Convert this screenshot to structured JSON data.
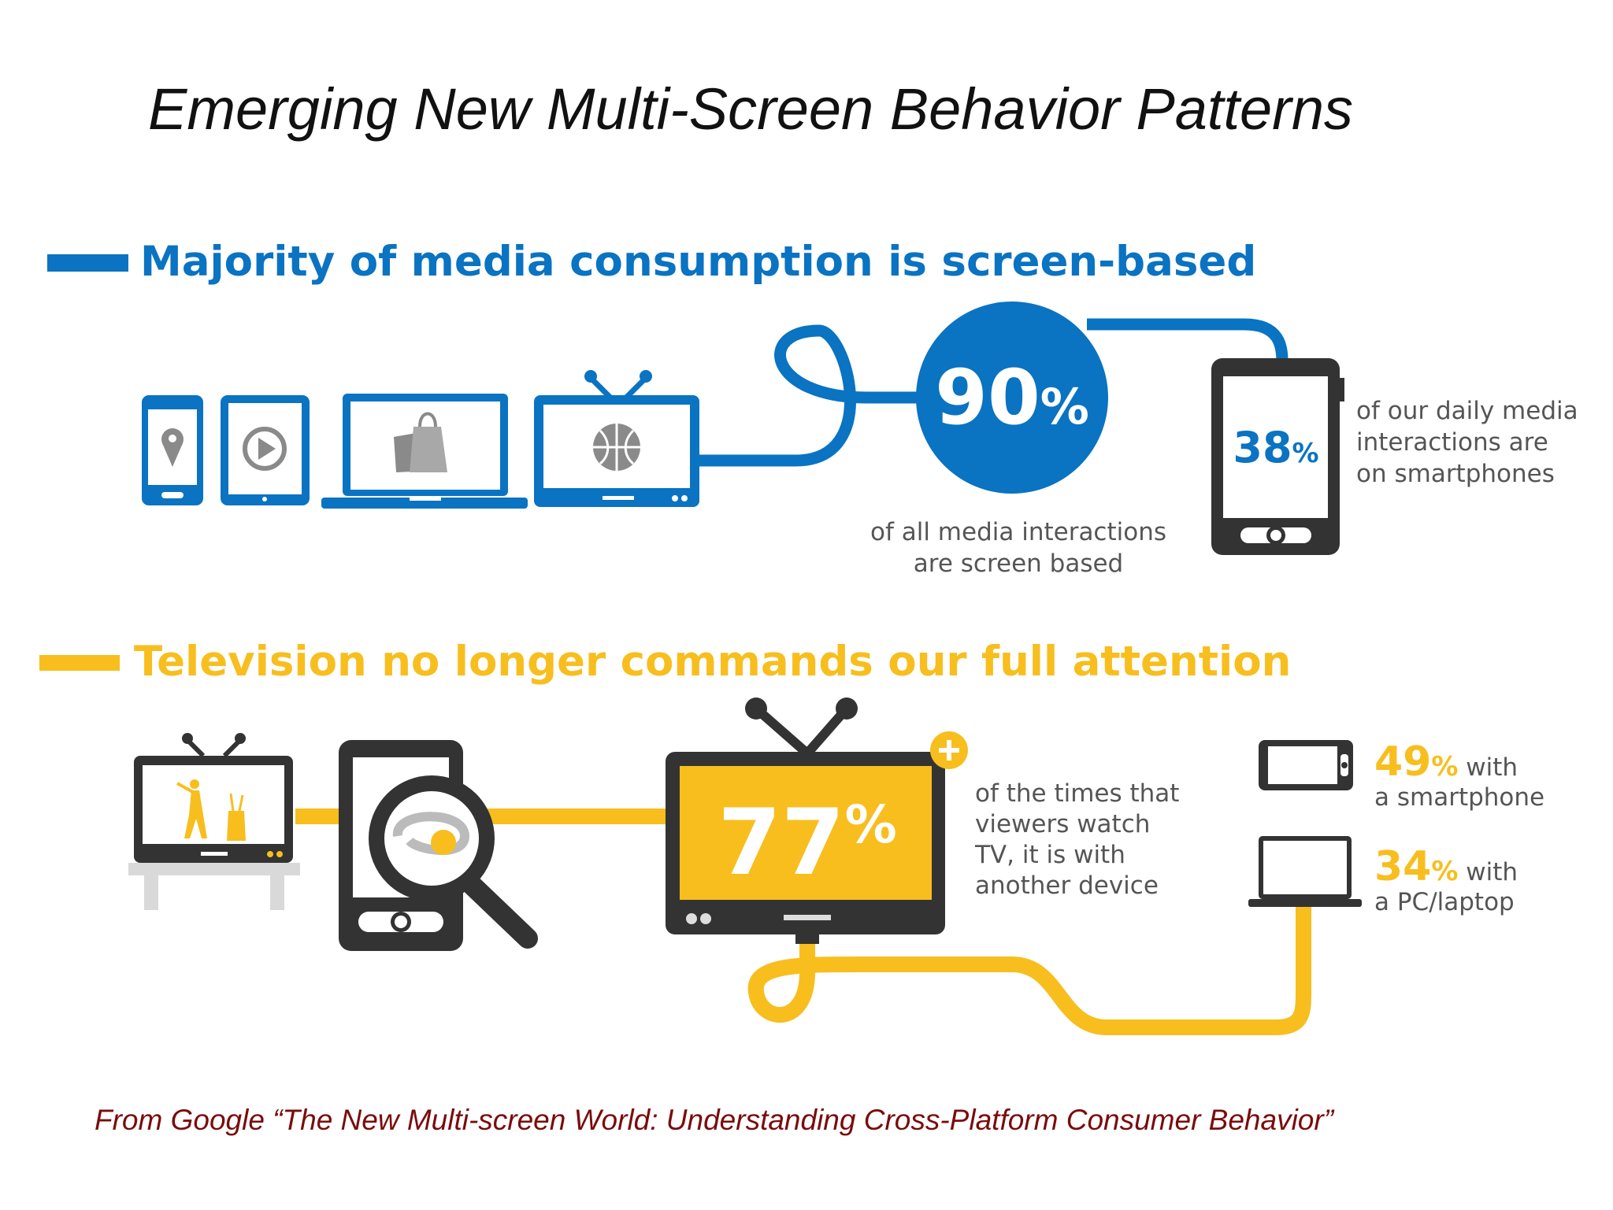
{
  "slide": {
    "title": "Emerging New Multi-Screen Behavior Patterns",
    "citation": "From Google  “The New Multi-screen World: Understanding Cross-Platform Consumer Behavior”"
  },
  "colors": {
    "blue": "#0a73c2",
    "yellow": "#f7be1e",
    "dark": "#333333",
    "gray": "#8a8a8a",
    "text": "#555555",
    "citation": "#7a0c0c"
  },
  "section1": {
    "heading": "Majority of media consumption is screen-based",
    "stat_main": {
      "number": "90",
      "unit": "%",
      "caption_line1": "of all media interactions",
      "caption_line2": "are screen based",
      "value_percent": 90
    },
    "stat_phone": {
      "number": "38",
      "unit": "%",
      "caption_line1": "of our daily media",
      "caption_line2": "interactions are",
      "caption_line3": "on smartphones",
      "value_percent": 38
    },
    "icons": [
      "smartphone-map-pin-icon",
      "tablet-play-icon",
      "laptop-shopping-bag-icon",
      "tv-basketball-icon",
      "smartphone-icon"
    ]
  },
  "section2": {
    "heading": "Television no longer commands our full attention",
    "stat_main": {
      "number": "77",
      "unit": "%",
      "caption_line1": "of the times that",
      "caption_line2": "viewers watch",
      "caption_line3": "TV, it is with",
      "caption_line4": "another device",
      "value_percent": 77
    },
    "stat_smartphone": {
      "number": "49",
      "unit": "%",
      "suffix": " with",
      "line2": "a smartphone",
      "value_percent": 49
    },
    "stat_pc": {
      "number": "34",
      "unit": "%",
      "suffix": " with",
      "line2": "a PC/laptop",
      "value_percent": 34
    },
    "icons": [
      "tv-golf-icon",
      "smartphone-search-icon",
      "tv-plus-icon",
      "smartphone-landscape-icon",
      "laptop-icon"
    ]
  }
}
